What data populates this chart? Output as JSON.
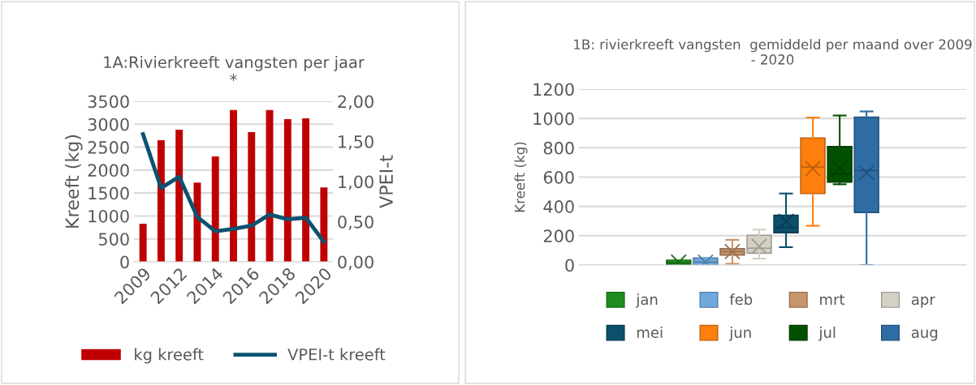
{
  "chart_data": [
    {
      "type": "bar",
      "title": "1A:Rivierkreeft vangsten per jaar\n*",
      "ylabel": "Kreeft (kg)",
      "y2label": "VPEI-t",
      "categories": [
        "2009",
        null,
        "2012",
        null,
        "2014",
        null,
        "2016",
        null,
        "2018",
        null,
        "2020"
      ],
      "series": [
        {
          "name": "kg kreeft",
          "type": "bar",
          "color": "#c00000",
          "values": [
            830,
            2650,
            2880,
            1730,
            2300,
            3310,
            2830,
            3310,
            3110,
            3130,
            1620
          ]
        },
        {
          "name": "VPEI-t kreeft",
          "type": "line",
          "axis": "y2",
          "color": "#0b5270",
          "values": [
            1.59,
            0.92,
            1.06,
            0.56,
            0.38,
            0.41,
            0.45,
            0.59,
            0.53,
            0.55,
            0.25
          ]
        }
      ],
      "ylim": [
        0,
        3500
      ],
      "yticks": [
        0,
        500,
        1000,
        1500,
        2000,
        2500,
        3000,
        3500
      ],
      "y2lim": [
        0,
        2
      ],
      "y2ticks": [
        {
          "value": 0,
          "label": "0,00"
        },
        {
          "value": 0.5,
          "label": "0,50"
        },
        {
          "value": 1,
          "label": "1,00"
        },
        {
          "value": 1.5,
          "label": "1,50"
        },
        {
          "value": 2,
          "label": "2,00"
        }
      ],
      "grid": "y",
      "legend": "bottom"
    },
    {
      "type": "box",
      "title": "1B: rivierkreeft vangsten  gemiddeld per maand over 2009\n- 2020",
      "ylabel": "Kreeft (kg)",
      "categories": [
        null
      ],
      "series": [
        {
          "name": "jan",
          "color": "#1e8c1e",
          "boxes": [
            {
              "low": 0,
              "q1": 5,
              "median": 15,
              "q3": 33,
              "high": 33,
              "mean": 20
            }
          ]
        },
        {
          "name": "feb",
          "color": "#6fa8dc",
          "boxes": [
            {
              "low": 0,
              "q1": 0,
              "median": 20,
              "q3": 48,
              "high": 48,
              "mean": 20
            }
          ]
        },
        {
          "name": "mrt",
          "color": "#c8956b",
          "boxes": [
            {
              "low": 9,
              "q1": 68,
              "median": 92,
              "q3": 111,
              "high": 172,
              "mean": 92
            }
          ]
        },
        {
          "name": "apr",
          "color": "#d4d0c4",
          "boxes": [
            {
              "low": 44,
              "q1": 81,
              "median": 115,
              "q3": 203,
              "high": 242,
              "mean": 128
            }
          ]
        },
        {
          "name": "mei",
          "color": "#0b4f6c",
          "boxes": [
            {
              "low": 122,
              "q1": 220,
              "median": 257,
              "q3": 340,
              "high": 488,
              "mean": 298
            }
          ]
        },
        {
          "name": "jun",
          "color": "#ff7f0e",
          "boxes": [
            {
              "low": 268,
              "q1": 488,
              "median": 669,
              "q3": 867,
              "high": 1006,
              "mean": 658
            }
          ]
        },
        {
          "name": "jul",
          "color": "#005000",
          "boxes": [
            {
              "low": 551,
              "q1": 566,
              "median": 623,
              "q3": 808,
              "high": 1020,
              "mean": 658
            }
          ]
        },
        {
          "name": "aug",
          "color": "#2e6da4",
          "boxes": [
            {
              "low": 0,
              "q1": 359,
              "median": 645,
              "q3": 1009,
              "high": 1048,
              "mean": 630
            }
          ]
        }
      ],
      "ylim": [
        0,
        1200
      ],
      "yticks": [
        0,
        200,
        400,
        600,
        800,
        1000,
        1200
      ],
      "grid": "y",
      "legend": "bottom"
    }
  ]
}
